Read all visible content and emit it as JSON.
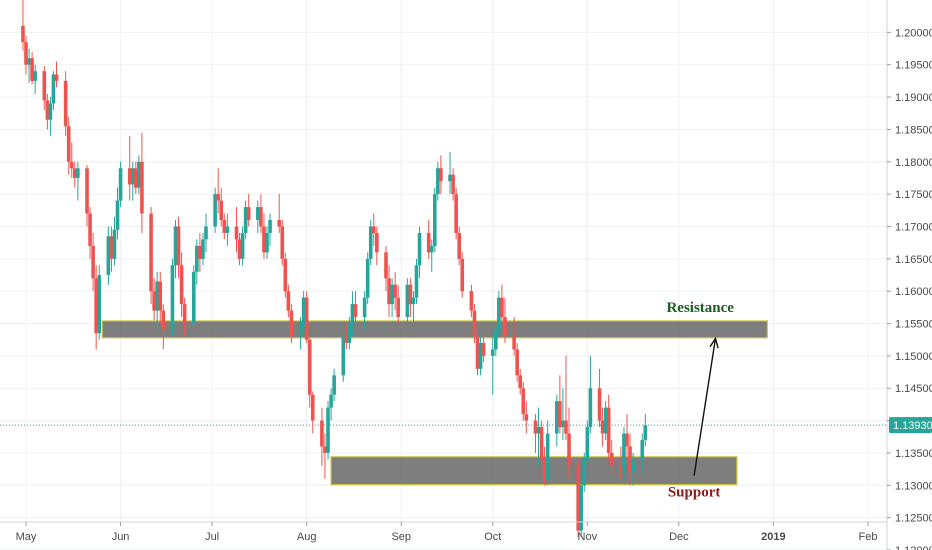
{
  "chart_data": {
    "type": "candlestick",
    "y_axis_position": "right",
    "ylim": [
      1.12,
      1.205
    ],
    "y_ticks": [
      "1.20000",
      "1.19500",
      "1.19000",
      "1.18500",
      "1.18000",
      "1.17500",
      "1.17000",
      "1.16500",
      "1.16000",
      "1.15500",
      "1.15000",
      "1.14500",
      "1.14000",
      "1.13500",
      "1.13000",
      "1.12500",
      "1.12000"
    ],
    "y_tick_values": [
      1.2,
      1.195,
      1.19,
      1.185,
      1.18,
      1.175,
      1.17,
      1.165,
      1.16,
      1.155,
      1.15,
      1.145,
      1.14,
      1.135,
      1.13,
      1.125,
      1.12
    ],
    "x_ticks": [
      "May",
      "Jun",
      "Jul",
      "Aug",
      "Sep",
      "Oct",
      "Nov",
      "Dec",
      "2019",
      "Feb"
    ],
    "x_tick_dates": [
      "2018-05-01",
      "2018-06-01",
      "2018-07-01",
      "2018-08-01",
      "2018-09-01",
      "2018-10-01",
      "2018-11-01",
      "2018-12-01",
      "2019-01-01",
      "2019-02-01"
    ],
    "x_range": [
      "2018-04-30",
      "2019-02-15"
    ],
    "grid": true,
    "up_color": "#26a69a",
    "down_color": "#ef5350",
    "last_price": {
      "value": 1.1393,
      "label": "1.13930",
      "color": "#26a69a"
    },
    "zones": [
      {
        "name": "Resistance",
        "y_low": 1.1528,
        "y_high": 1.1554,
        "x_start": "2018-05-26",
        "x_end": "2018-12-30",
        "label_color": "#1b5e20"
      },
      {
        "name": "Support",
        "y_low": 1.1301,
        "y_high": 1.1344,
        "x_start": "2018-08-09",
        "x_end": "2018-12-20",
        "label_color": "#8b1a1a"
      }
    ],
    "arrow": {
      "from_date": "2018-12-06",
      "from_price": 1.1315,
      "to_date": "2018-12-13",
      "to_price": 1.1527
    },
    "candles_start_date": "2018-04-30",
    "candles_ohlc": [
      [
        1.201,
        1.205,
        1.1972,
        1.1985
      ],
      [
        1.1985,
        1.1995,
        1.1935,
        1.195
      ],
      [
        1.195,
        1.1975,
        1.1922,
        1.196
      ],
      [
        1.196,
        1.197,
        1.192,
        1.1925
      ],
      [
        1.1925,
        1.195,
        1.1905,
        1.194
      ],
      [
        1.194,
        1.1948,
        1.188,
        1.1895
      ],
      [
        1.1895,
        1.1905,
        1.185,
        1.1865
      ],
      [
        1.1865,
        1.19,
        1.184,
        1.189
      ],
      [
        1.189,
        1.194,
        1.188,
        1.1935
      ],
      [
        1.1935,
        1.1955,
        1.1915,
        1.1925
      ],
      [
        1.1925,
        1.194,
        1.184,
        1.1855
      ],
      [
        1.1855,
        1.187,
        1.178,
        1.18
      ],
      [
        1.18,
        1.183,
        1.1775,
        1.179
      ],
      [
        1.179,
        1.18,
        1.176,
        1.1775
      ],
      [
        1.1775,
        1.18,
        1.174,
        1.179
      ],
      [
        1.179,
        1.1795,
        1.17,
        1.172
      ],
      [
        1.172,
        1.173,
        1.165,
        1.167
      ],
      [
        1.167,
        1.169,
        1.16,
        1.162
      ],
      [
        1.162,
        1.164,
        1.151,
        1.1535
      ],
      [
        1.1535,
        1.164,
        1.1525,
        1.1625
      ],
      [
        1.1625,
        1.17,
        1.161,
        1.1685
      ],
      [
        1.1685,
        1.17,
        1.163,
        1.165
      ],
      [
        1.165,
        1.1715,
        1.164,
        1.1695
      ],
      [
        1.1695,
        1.176,
        1.168,
        1.174
      ],
      [
        1.174,
        1.18,
        1.173,
        1.179
      ],
      [
        1.179,
        1.184,
        1.174,
        1.1765
      ],
      [
        1.1765,
        1.18,
        1.174,
        1.179
      ],
      [
        1.179,
        1.18,
        1.175,
        1.176
      ],
      [
        1.176,
        1.181,
        1.175,
        1.18
      ],
      [
        1.18,
        1.1845,
        1.169,
        1.172
      ],
      [
        1.172,
        1.173,
        1.158,
        1.16
      ],
      [
        1.16,
        1.162,
        1.1555,
        1.157
      ],
      [
        1.157,
        1.163,
        1.154,
        1.1615
      ],
      [
        1.1615,
        1.163,
        1.155,
        1.157
      ],
      [
        1.157,
        1.158,
        1.151,
        1.154
      ],
      [
        1.154,
        1.165,
        1.153,
        1.164
      ],
      [
        1.164,
        1.171,
        1.162,
        1.17
      ],
      [
        1.17,
        1.1715,
        1.162,
        1.164
      ],
      [
        1.164,
        1.166,
        1.156,
        1.158
      ],
      [
        1.158,
        1.159,
        1.153,
        1.155
      ],
      [
        1.155,
        1.164,
        1.1545,
        1.163
      ],
      [
        1.163,
        1.168,
        1.161,
        1.167
      ],
      [
        1.167,
        1.169,
        1.163,
        1.165
      ],
      [
        1.165,
        1.169,
        1.164,
        1.168
      ],
      [
        1.168,
        1.172,
        1.166,
        1.17
      ],
      [
        1.17,
        1.176,
        1.169,
        1.175
      ],
      [
        1.175,
        1.179,
        1.172,
        1.174
      ],
      [
        1.174,
        1.176,
        1.17,
        1.171
      ],
      [
        1.171,
        1.172,
        1.168,
        1.169
      ],
      [
        1.169,
        1.172,
        1.167,
        1.17
      ],
      [
        1.17,
        1.173,
        1.166,
        1.168
      ],
      [
        1.168,
        1.169,
        1.164,
        1.165
      ],
      [
        1.165,
        1.17,
        1.164,
        1.169
      ],
      [
        1.169,
        1.174,
        1.168,
        1.173
      ],
      [
        1.173,
        1.175,
        1.17,
        1.171
      ],
      [
        1.171,
        1.174,
        1.169,
        1.173
      ],
      [
        1.173,
        1.175,
        1.169,
        1.17
      ],
      [
        1.17,
        1.172,
        1.165,
        1.166
      ],
      [
        1.166,
        1.17,
        1.165,
        1.169
      ],
      [
        1.169,
        1.172,
        1.167,
        1.171
      ],
      [
        1.171,
        1.175,
        1.169,
        1.17
      ],
      [
        1.17,
        1.171,
        1.164,
        1.165
      ],
      [
        1.165,
        1.166,
        1.159,
        1.16
      ],
      [
        1.16,
        1.161,
        1.156,
        1.157
      ],
      [
        1.157,
        1.158,
        1.152,
        1.153
      ],
      [
        1.153,
        1.156,
        1.151,
        1.154
      ],
      [
        1.154,
        1.16,
        1.153,
        1.159
      ],
      [
        1.159,
        1.16,
        1.152,
        1.1525
      ],
      [
        1.1525,
        1.153,
        1.142,
        1.144
      ],
      [
        1.144,
        1.1445,
        1.138,
        1.14
      ],
      [
        1.14,
        1.142,
        1.133,
        1.136
      ],
      [
        1.136,
        1.138,
        1.131,
        1.135
      ],
      [
        1.135,
        1.143,
        1.134,
        1.142
      ],
      [
        1.142,
        1.145,
        1.14,
        1.144
      ],
      [
        1.144,
        1.148,
        1.143,
        1.147
      ],
      [
        1.147,
        1.154,
        1.146,
        1.153
      ],
      [
        1.153,
        1.155,
        1.151,
        1.152
      ],
      [
        1.152,
        1.156,
        1.151,
        1.155
      ],
      [
        1.155,
        1.16,
        1.153,
        1.158
      ],
      [
        1.158,
        1.16,
        1.154,
        1.156
      ],
      [
        1.156,
        1.16,
        1.154,
        1.159
      ],
      [
        1.159,
        1.166,
        1.158,
        1.165
      ],
      [
        1.165,
        1.171,
        1.164,
        1.17
      ],
      [
        1.17,
        1.172,
        1.167,
        1.169
      ],
      [
        1.169,
        1.17,
        1.164,
        1.166
      ],
      [
        1.166,
        1.167,
        1.16,
        1.162
      ],
      [
        1.162,
        1.164,
        1.156,
        1.158
      ],
      [
        1.158,
        1.162,
        1.156,
        1.161
      ],
      [
        1.161,
        1.163,
        1.157,
        1.159
      ],
      [
        1.159,
        1.161,
        1.155,
        1.156
      ],
      [
        1.156,
        1.162,
        1.155,
        1.161
      ],
      [
        1.161,
        1.162,
        1.156,
        1.158
      ],
      [
        1.158,
        1.16,
        1.154,
        1.159
      ],
      [
        1.159,
        1.165,
        1.158,
        1.164
      ],
      [
        1.164,
        1.17,
        1.162,
        1.169
      ],
      [
        1.169,
        1.171,
        1.165,
        1.166
      ],
      [
        1.166,
        1.168,
        1.163,
        1.167
      ],
      [
        1.167,
        1.176,
        1.166,
        1.175
      ],
      [
        1.175,
        1.18,
        1.174,
        1.179
      ],
      [
        1.179,
        1.181,
        1.175,
        1.177
      ],
      [
        1.177,
        1.1815,
        1.175,
        1.178
      ],
      [
        1.178,
        1.179,
        1.174,
        1.175
      ],
      [
        1.175,
        1.176,
        1.168,
        1.169
      ],
      [
        1.169,
        1.17,
        1.164,
        1.165
      ],
      [
        1.165,
        1.166,
        1.159,
        1.16
      ],
      [
        1.16,
        1.161,
        1.156,
        1.157
      ],
      [
        1.157,
        1.158,
        1.152,
        1.153
      ],
      [
        1.153,
        1.154,
        1.147,
        1.148
      ],
      [
        1.148,
        1.153,
        1.147,
        1.152
      ],
      [
        1.152,
        1.153,
        1.149,
        1.15
      ],
      [
        1.15,
        1.153,
        1.144,
        1.151
      ],
      [
        1.151,
        1.155,
        1.15,
        1.154
      ],
      [
        1.154,
        1.16,
        1.153,
        1.159
      ],
      [
        1.159,
        1.161,
        1.155,
        1.156
      ],
      [
        1.156,
        1.159,
        1.152,
        1.153
      ],
      [
        1.153,
        1.156,
        1.15,
        1.151
      ],
      [
        1.151,
        1.152,
        1.146,
        1.147
      ],
      [
        1.147,
        1.148,
        1.144,
        1.145
      ],
      [
        1.145,
        1.146,
        1.14,
        1.141
      ],
      [
        1.141,
        1.143,
        1.138,
        1.14
      ],
      [
        1.14,
        1.141,
        1.135,
        1.138
      ],
      [
        1.138,
        1.142,
        1.133,
        1.139
      ],
      [
        1.139,
        1.14,
        1.132,
        1.134
      ],
      [
        1.134,
        1.136,
        1.13,
        1.131
      ],
      [
        1.131,
        1.14,
        1.13,
        1.138
      ],
      [
        1.138,
        1.144,
        1.136,
        1.143
      ],
      [
        1.143,
        1.147,
        1.138,
        1.139
      ],
      [
        1.139,
        1.145,
        1.137,
        1.14
      ],
      [
        1.14,
        1.15,
        1.137,
        1.138
      ],
      [
        1.138,
        1.142,
        1.131,
        1.133
      ],
      [
        1.133,
        1.134,
        1.122,
        1.123
      ],
      [
        1.123,
        1.132,
        1.122,
        1.13
      ],
      [
        1.13,
        1.135,
        1.129,
        1.134
      ],
      [
        1.134,
        1.14,
        1.133,
        1.139
      ],
      [
        1.139,
        1.15,
        1.138,
        1.145
      ],
      [
        1.145,
        1.148,
        1.139,
        1.14
      ],
      [
        1.14,
        1.142,
        1.136,
        1.138
      ],
      [
        1.138,
        1.143,
        1.137,
        1.142
      ],
      [
        1.142,
        1.144,
        1.134,
        1.135
      ],
      [
        1.135,
        1.137,
        1.132,
        1.133
      ],
      [
        1.133,
        1.136,
        1.131,
        1.132
      ],
      [
        1.132,
        1.139,
        1.131,
        1.138
      ],
      [
        1.138,
        1.141,
        1.134,
        1.136
      ],
      [
        1.136,
        1.138,
        1.13,
        1.132
      ],
      [
        1.132,
        1.135,
        1.13,
        1.134
      ],
      [
        1.134,
        1.138,
        1.132,
        1.137
      ],
      [
        1.137,
        1.141,
        1.136,
        1.1393
      ]
    ]
  }
}
